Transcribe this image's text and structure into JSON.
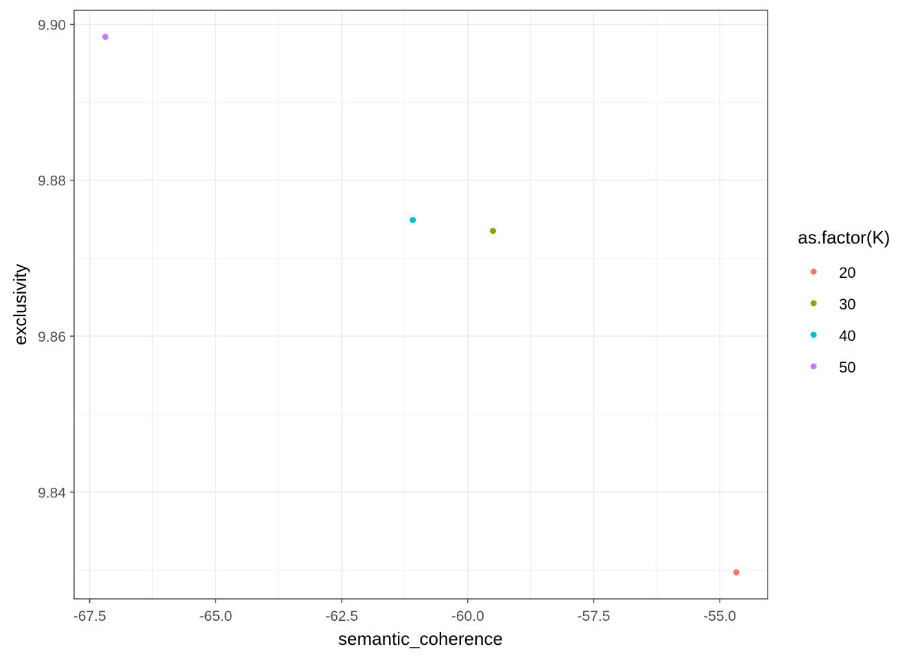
{
  "chart_data": {
    "type": "scatter",
    "xlabel": "semantic_coherence",
    "ylabel": "exclusivity",
    "xlim": [
      -67.81,
      -54.05
    ],
    "ylim": [
      9.8263,
      9.9018
    ],
    "x_ticks": [
      -67.5,
      -65.0,
      -62.5,
      -60.0,
      -57.5,
      -55.0
    ],
    "x_tick_labels": [
      "-67.5",
      "-65.0",
      "-62.5",
      "-60.0",
      "-57.5",
      "-55.0"
    ],
    "y_ticks": [
      9.84,
      9.86,
      9.88,
      9.9
    ],
    "y_tick_labels": [
      "9.84",
      "9.86",
      "9.88",
      "9.90"
    ],
    "grid": true,
    "legend": {
      "title": "as.factor(K)",
      "placement": "right",
      "entries": [
        "20",
        "30",
        "40",
        "50"
      ]
    },
    "series": [
      {
        "name": "20",
        "color": "#F8766D",
        "points": [
          {
            "x": -54.67,
            "y": 9.8297
          }
        ]
      },
      {
        "name": "30",
        "color": "#7CAE00",
        "points": [
          {
            "x": -59.5,
            "y": 9.8735
          }
        ]
      },
      {
        "name": "40",
        "color": "#00BFC4",
        "points": [
          {
            "x": -61.09,
            "y": 9.8749
          }
        ]
      },
      {
        "name": "50",
        "color": "#C77CFF",
        "points": [
          {
            "x": -67.19,
            "y": 9.8984
          }
        ]
      }
    ]
  }
}
